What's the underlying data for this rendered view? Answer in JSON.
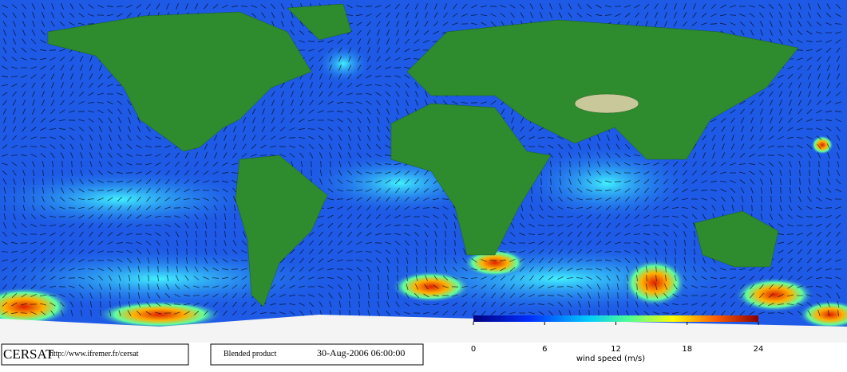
{
  "footer": {
    "logo": "CERSAT",
    "url": "http://www.ifremer.fr/cersat",
    "product": "Blended product",
    "datetime": "30-Aug-2006 06:00:00"
  },
  "colorbar": {
    "ticks": [
      0,
      6,
      12,
      18,
      24
    ],
    "label": "wind speed (m/s)"
  }
}
